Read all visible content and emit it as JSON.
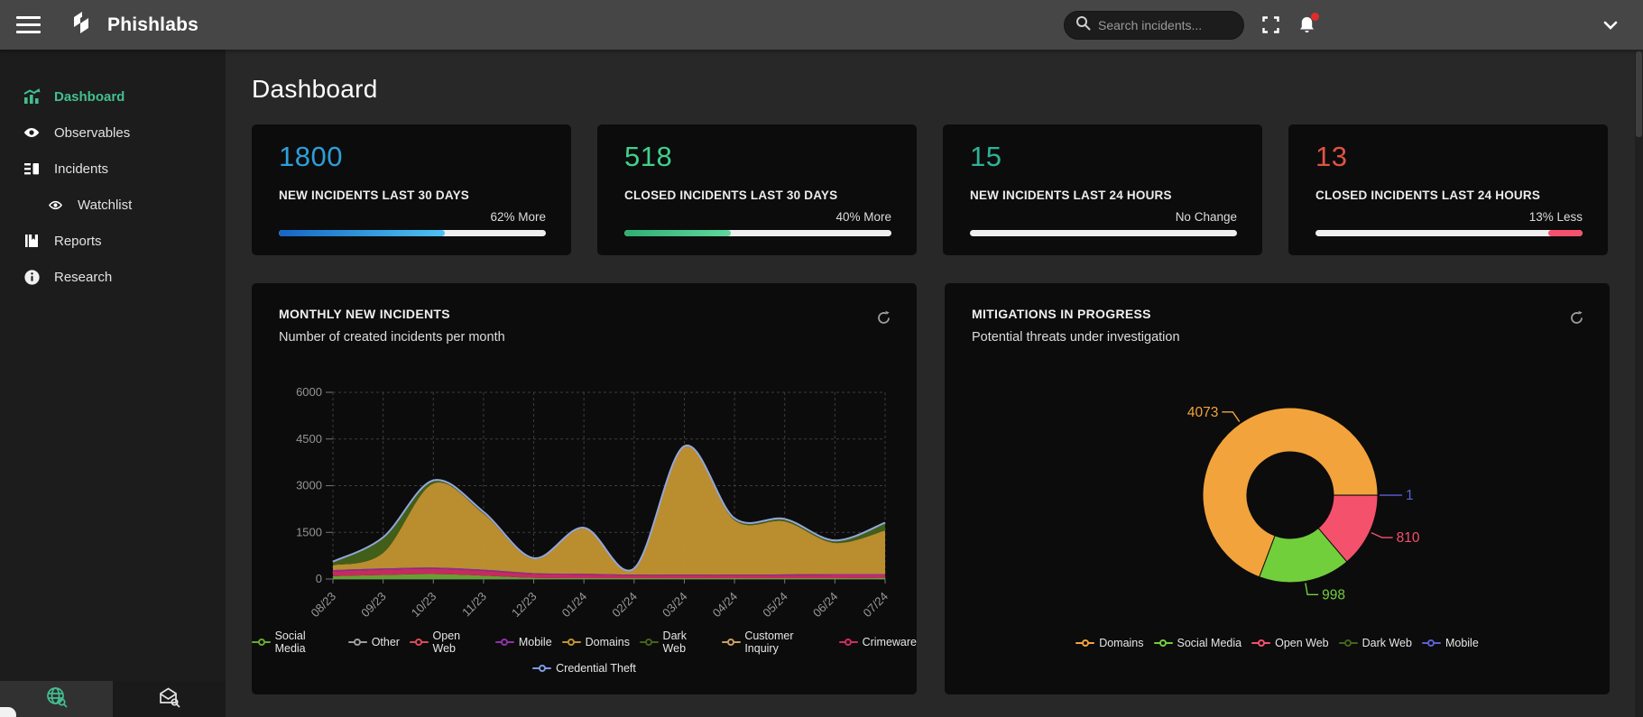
{
  "header": {
    "brand": "Phishlabs",
    "search_placeholder": "Search incidents..."
  },
  "sidebar": {
    "items": [
      {
        "label": "Dashboard",
        "active": true
      },
      {
        "label": "Observables"
      },
      {
        "label": "Incidents"
      },
      {
        "label": "Watchlist",
        "indent": true
      },
      {
        "label": "Reports"
      },
      {
        "label": "Research"
      }
    ]
  },
  "page": {
    "title": "Dashboard"
  },
  "stat_cards": [
    {
      "value": "1800",
      "label": "NEW INCIDENTS LAST 30 DAYS",
      "change": "62% More",
      "percent": 62,
      "value_color": "#2d9fd8",
      "bar_colors": [
        "#1566c4",
        "#4dc3f2"
      ],
      "bar_align": "left"
    },
    {
      "value": "518",
      "label": "CLOSED INCIDENTS LAST 30 DAYS",
      "change": "40% More",
      "percent": 40,
      "value_color": "#41d08c",
      "bar_colors": [
        "#2fae73",
        "#5fd79d"
      ],
      "bar_align": "left"
    },
    {
      "value": "15",
      "label": "NEW INCIDENTS LAST 24 HOURS",
      "change": "No Change",
      "percent": 0,
      "value_color": "#2eb398",
      "bar_colors": [
        "#efefef",
        "#efefef"
      ],
      "bar_align": "left"
    },
    {
      "value": "13",
      "label": "CLOSED INCIDENTS LAST 24 HOURS",
      "change": "13% Less",
      "percent": 13,
      "value_color": "#e05243",
      "bar_colors": [
        "#f4516c",
        "#f4516c"
      ],
      "bar_align": "right"
    }
  ],
  "chart_data": [
    {
      "type": "area",
      "title": "MONTHLY NEW INCIDENTS",
      "subtitle": "Number of created incidents per month",
      "categories": [
        "08/23",
        "09/23",
        "10/23",
        "11/23",
        "12/23",
        "01/24",
        "02/24",
        "03/24",
        "04/24",
        "05/24",
        "06/24",
        "07/24"
      ],
      "series": [
        {
          "name": "Social Media",
          "color": "#69a832",
          "values": [
            90,
            130,
            160,
            110,
            40,
            30,
            30,
            30,
            30,
            30,
            30,
            40
          ]
        },
        {
          "name": "Other",
          "color": "#9e9e9e",
          "values": [
            0,
            0,
            0,
            0,
            0,
            0,
            0,
            0,
            0,
            0,
            0,
            0
          ]
        },
        {
          "name": "Open Web",
          "color": "#e0485a",
          "values": [
            0,
            0,
            0,
            0,
            0,
            0,
            0,
            0,
            0,
            0,
            0,
            0
          ]
        },
        {
          "name": "Mobile",
          "color": "#9131ac",
          "values": [
            40,
            40,
            40,
            40,
            30,
            30,
            20,
            20,
            20,
            30,
            30,
            30
          ]
        },
        {
          "name": "Domains",
          "color": "#c29331",
          "values": [
            150,
            500,
            2700,
            1800,
            450,
            1450,
            180,
            4100,
            1750,
            1700,
            1000,
            1400
          ]
        },
        {
          "name": "Dark Web",
          "color": "#44631a",
          "values": [
            120,
            500,
            100,
            60,
            30,
            30,
            20,
            30,
            60,
            80,
            80,
            250
          ]
        },
        {
          "name": "Customer Inquiry",
          "color": "#c9a063",
          "values": [
            0,
            0,
            0,
            0,
            0,
            0,
            0,
            0,
            0,
            0,
            0,
            0
          ]
        },
        {
          "name": "Crimeware",
          "color": "#cf2d62",
          "values": [
            160,
            170,
            170,
            150,
            120,
            110,
            90,
            90,
            90,
            90,
            100,
            90
          ]
        },
        {
          "name": "Credential Theft",
          "color": "#7d9ce0",
          "values": [
            0,
            0,
            0,
            0,
            0,
            0,
            0,
            0,
            0,
            0,
            0,
            0
          ]
        }
      ],
      "stack_order": [
        "Social Media",
        "Crimeware",
        "Mobile",
        "Domains",
        "Dark Web"
      ],
      "top_stroke_color": "#93a7dc",
      "legend_rows": [
        8,
        1
      ],
      "ylim": [
        0,
        6000
      ],
      "yticks": [
        0,
        1500,
        3000,
        4500,
        6000
      ],
      "grid": "dashed"
    },
    {
      "type": "pie",
      "title": "MITIGATIONS IN PROGRESS",
      "subtitle": "Potential threats under investigation",
      "slices": [
        {
          "name": "Mobile",
          "value": 1,
          "color": "#5b5fd6"
        },
        {
          "name": "Open Web",
          "value": 810,
          "color": "#f4516c"
        },
        {
          "name": "Social Media",
          "value": 998,
          "color": "#72cf3c"
        },
        {
          "name": "Domains",
          "value": 4073,
          "color": "#f2a33c"
        },
        {
          "name": "Dark Web",
          "value": 0,
          "color": "#44631a"
        }
      ],
      "legend_order": [
        "Domains",
        "Social Media",
        "Open Web",
        "Dark Web",
        "Mobile"
      ],
      "start_angle_deg": 90,
      "donut": true
    }
  ]
}
